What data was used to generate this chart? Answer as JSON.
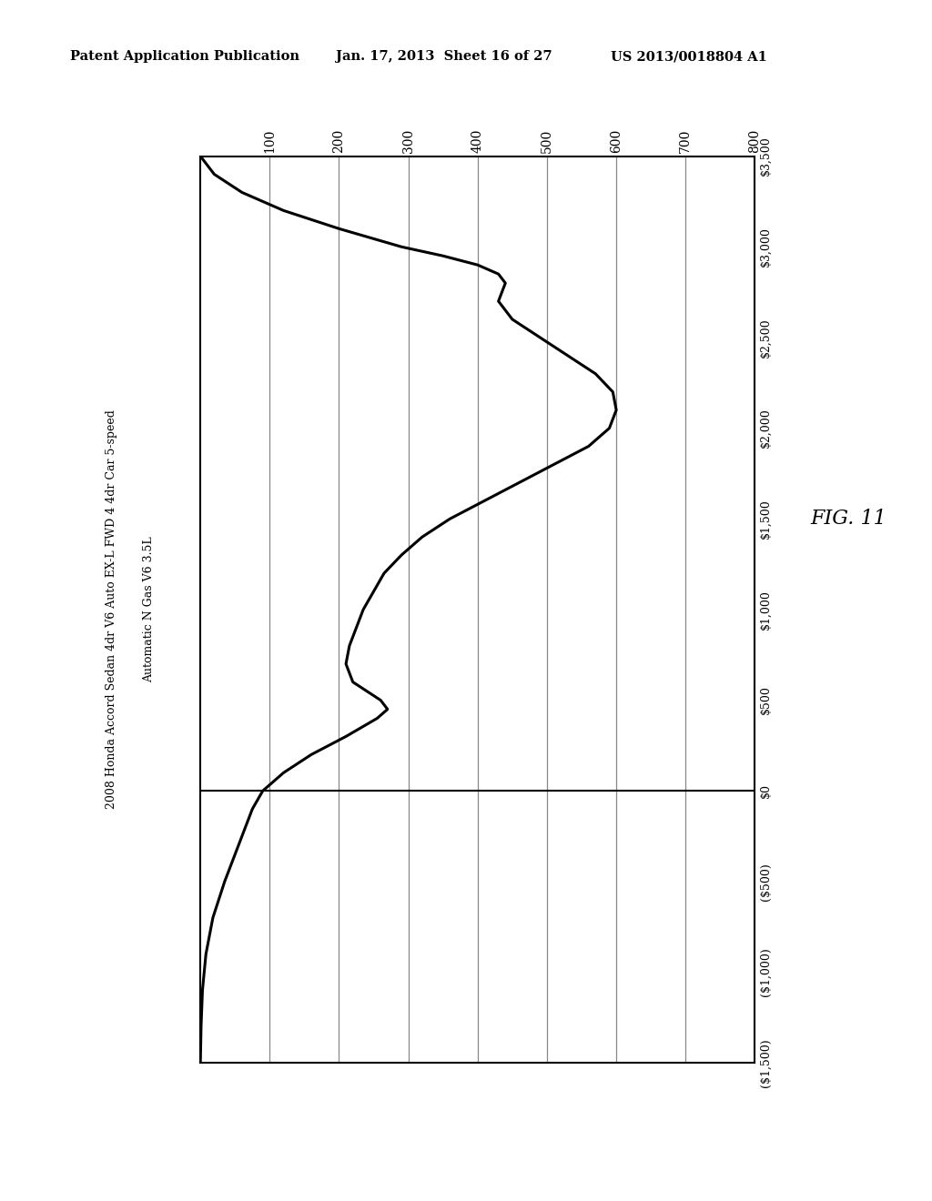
{
  "header_left": "Patent Application Publication",
  "header_mid": "Jan. 17, 2013  Sheet 16 of 27",
  "header_right": "US 2013/0018804 A1",
  "chart_title_line1": "2008 Honda Accord Sedan 4dr V6 Auto EX-L FWD 4 4dr Car 5-speed",
  "chart_title_line2": "Automatic N Gas V6 3.5L",
  "fig_label": "FIG. 11",
  "price_tick_labels": [
    "($1,500)",
    "($1,000)",
    "($500)",
    "$0",
    "$500",
    "$1,000",
    "$1,500",
    "$2,000",
    "$2,500",
    "$3,000",
    "$3,500"
  ],
  "price_tick_values": [
    -1500,
    -1000,
    -500,
    0,
    500,
    1000,
    1500,
    2000,
    2500,
    3000,
    3500
  ],
  "count_tick_labels": [
    "800",
    "700",
    "600",
    "500",
    "400",
    "300",
    "200",
    "100"
  ],
  "count_tick_values": [
    800,
    700,
    600,
    500,
    400,
    300,
    200,
    100
  ],
  "price_min": -1500,
  "price_max": 3500,
  "count_min": 0,
  "count_max": 800,
  "background_color": "#ffffff",
  "line_color": "#000000",
  "grid_color": "#888888",
  "zero_line_color": "#000000",
  "curve_prices": [
    -1500,
    -1300,
    -1100,
    -900,
    -700,
    -500,
    -300,
    -100,
    0,
    100,
    200,
    300,
    400,
    450,
    500,
    550,
    600,
    650,
    700,
    800,
    900,
    1000,
    1100,
    1200,
    1300,
    1400,
    1500,
    1600,
    1700,
    1800,
    1900,
    2000,
    2100,
    2200,
    2300,
    2400,
    2500,
    2600,
    2700,
    2750,
    2800,
    2850,
    2900,
    2950,
    3000,
    3100,
    3200,
    3300,
    3400,
    3500
  ],
  "curve_counts": [
    0,
    1,
    3,
    8,
    18,
    35,
    55,
    75,
    90,
    120,
    160,
    210,
    255,
    270,
    260,
    240,
    220,
    215,
    210,
    215,
    225,
    235,
    250,
    265,
    290,
    320,
    360,
    410,
    460,
    510,
    560,
    590,
    600,
    595,
    570,
    530,
    490,
    450,
    430,
    435,
    440,
    430,
    400,
    350,
    290,
    200,
    120,
    60,
    20,
    0
  ]
}
